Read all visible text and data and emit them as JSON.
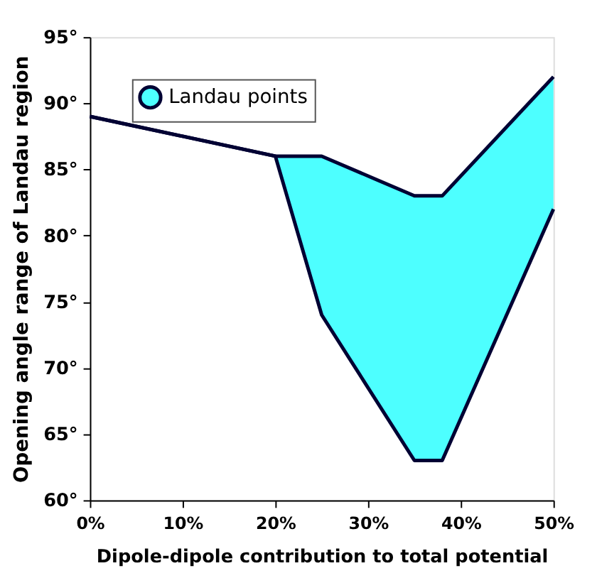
{
  "chart_data": {
    "type": "area",
    "xlabel": "Dipole-dipole contribution to total potential",
    "ylabel": "Opening angle range of Landau region",
    "x": [
      0,
      20,
      25,
      35,
      38,
      50
    ],
    "series": [
      {
        "type": "line",
        "color": "#000033",
        "values": [
          89,
          86,
          74,
          63,
          63,
          82
        ]
      },
      {
        "name": "Landau points",
        "color": "#4dffff",
        "values": [
          89,
          86,
          86,
          83,
          83,
          92
        ]
      }
    ],
    "xlim": [
      0,
      50
    ],
    "ylim": [
      60,
      95
    ],
    "xticks": [
      {
        "value": 0,
        "label": "0%"
      },
      {
        "value": 10,
        "label": "10%"
      },
      {
        "value": 20,
        "label": "20%"
      },
      {
        "value": 30,
        "label": "30%"
      },
      {
        "value": 40,
        "label": "40%"
      },
      {
        "value": 50,
        "label": "50%"
      }
    ],
    "yticks": [
      {
        "value": 60,
        "label": "60°"
      },
      {
        "value": 65,
        "label": "65°"
      },
      {
        "value": 70,
        "label": "70°"
      },
      {
        "value": 75,
        "label": "75°"
      },
      {
        "value": 80,
        "label": "80°"
      },
      {
        "value": 85,
        "label": "85°"
      },
      {
        "value": 90,
        "label": "90°"
      },
      {
        "value": 95,
        "label": "95°"
      }
    ],
    "grid": false,
    "legend": "top left"
  }
}
